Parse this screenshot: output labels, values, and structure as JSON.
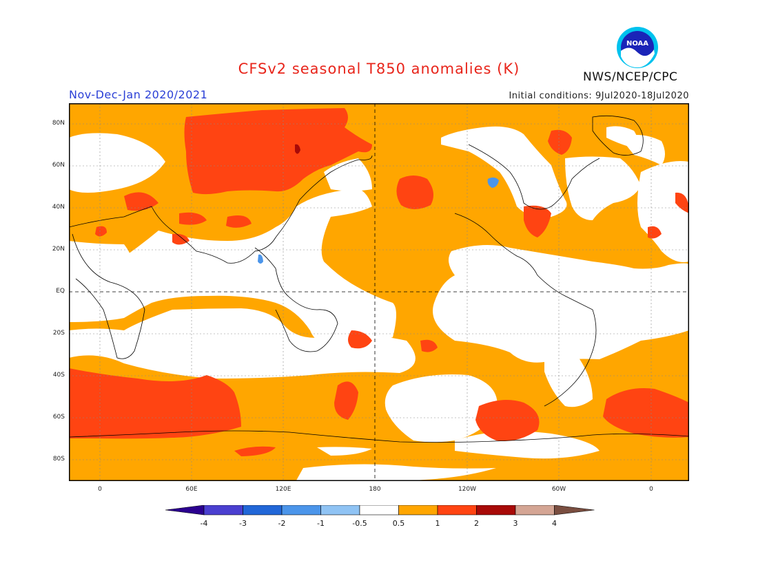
{
  "header": {
    "title": "CFSv2 seasonal T850 anomalies (K)",
    "period": "Nov-Dec-Jan 2020/2021",
    "initial_conditions": "Initial conditions: 9Jul2020-18Jul2020",
    "agency": "NWS/NCEP/CPC",
    "logo_text": "NOAA"
  },
  "axes": {
    "lat_labels": [
      "80N",
      "60N",
      "40N",
      "20N",
      "EQ",
      "20S",
      "40S",
      "60S",
      "80S"
    ],
    "lon_labels": [
      "0",
      "60E",
      "120E",
      "180",
      "120W",
      "60W",
      "0"
    ]
  },
  "colorbar": {
    "labels": [
      "-4",
      "-3",
      "-2",
      "-1",
      "-0.5",
      "0.5",
      "1",
      "2",
      "3",
      "4"
    ],
    "colors": [
      "#2b008f",
      "#4a3fd0",
      "#2167d8",
      "#4b95ea",
      "#8fc3f4",
      "#ffffff",
      "#ffa600",
      "#ff4412",
      "#a80a08",
      "#d4a594",
      "#7a4e40"
    ]
  }
}
